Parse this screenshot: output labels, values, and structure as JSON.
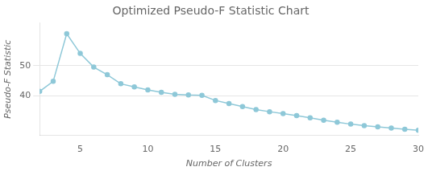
{
  "chart_data": {
    "type": "line",
    "title": "Optimized Pseudo-F Statistic Chart",
    "xlabel": "Number of Clusters",
    "ylabel": "Pseudo-F Statistic",
    "x": [
      2,
      3,
      4,
      5,
      6,
      7,
      8,
      9,
      10,
      11,
      12,
      13,
      14,
      15,
      16,
      17,
      18,
      19,
      20,
      21,
      22,
      23,
      24,
      25,
      26,
      27,
      28,
      29,
      30
    ],
    "values": [
      41.5,
      44.8,
      60.5,
      54.0,
      49.5,
      47.0,
      44.0,
      43.0,
      42.0,
      41.2,
      40.5,
      40.3,
      40.2,
      38.5,
      37.5,
      36.5,
      35.5,
      34.8,
      34.2,
      33.5,
      32.8,
      32.0,
      31.3,
      30.7,
      30.2,
      29.8,
      29.4,
      29.0,
      28.7
    ],
    "color": "#8ec8d8",
    "marker": "circle",
    "xlim": [
      2,
      30
    ],
    "ylim": [
      27,
      64
    ],
    "xticks": [
      5,
      10,
      15,
      20,
      25,
      30
    ],
    "yticks": [
      40,
      50
    ],
    "grid": true
  }
}
